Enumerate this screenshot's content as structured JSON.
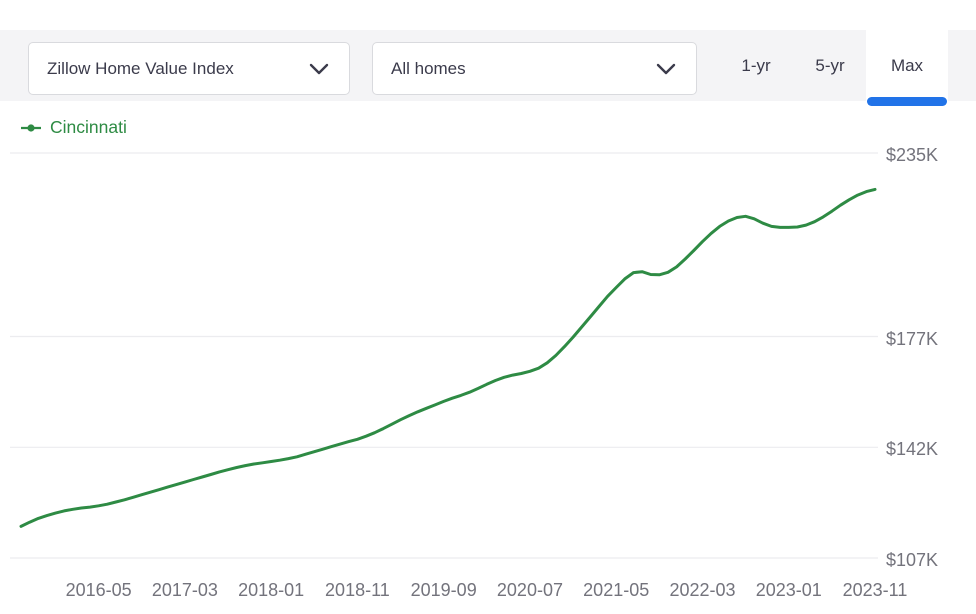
{
  "toolbar": {
    "metric_dropdown": {
      "value": "Zillow Home Value Index"
    },
    "segment_dropdown": {
      "value": "All homes"
    },
    "range_tabs": [
      {
        "label": "1-yr",
        "active": false
      },
      {
        "label": "5-yr",
        "active": false
      },
      {
        "label": "Max",
        "active": true
      }
    ]
  },
  "legend": {
    "label": "Cincinnati"
  },
  "colors": {
    "series_green": "#2e8b44",
    "active_tab_blue": "#2173e8",
    "toolbar_bg": "#f4f4f6",
    "dropdown_border": "#d9dade",
    "dropdown_text": "#3b3b4b",
    "axis_label": "#73737c",
    "gridline": "#ececef"
  },
  "chart_data": {
    "type": "line",
    "title": "",
    "xlabel": "",
    "ylabel": "",
    "grid": "horizontal",
    "legend_position": "top-left",
    "unit": "USD thousands",
    "ylim": [
      103,
      239
    ],
    "y_ticks": {
      "values": [
        235,
        177,
        142,
        107
      ],
      "labels": [
        "$235K",
        "$177K",
        "$142K",
        "$107K"
      ]
    },
    "x_tick_labels": [
      "2016-05",
      "2017-03",
      "2018-01",
      "2018-11",
      "2019-09",
      "2020-07",
      "2021-05",
      "2022-03",
      "2023-01",
      "2023-11"
    ],
    "x": [
      "2015-08",
      "2015-09",
      "2015-10",
      "2015-11",
      "2015-12",
      "2016-01",
      "2016-02",
      "2016-03",
      "2016-04",
      "2016-05",
      "2016-06",
      "2016-07",
      "2016-08",
      "2016-09",
      "2016-10",
      "2016-11",
      "2016-12",
      "2017-01",
      "2017-02",
      "2017-03",
      "2017-04",
      "2017-05",
      "2017-06",
      "2017-07",
      "2017-08",
      "2017-09",
      "2017-10",
      "2017-11",
      "2017-12",
      "2018-01",
      "2018-02",
      "2018-03",
      "2018-04",
      "2018-05",
      "2018-06",
      "2018-07",
      "2018-08",
      "2018-09",
      "2018-10",
      "2018-11",
      "2018-12",
      "2019-01",
      "2019-02",
      "2019-03",
      "2019-04",
      "2019-05",
      "2019-06",
      "2019-07",
      "2019-08",
      "2019-09",
      "2019-10",
      "2019-11",
      "2019-12",
      "2020-01",
      "2020-02",
      "2020-03",
      "2020-04",
      "2020-05",
      "2020-06",
      "2020-07",
      "2020-08",
      "2020-09",
      "2020-10",
      "2020-11",
      "2020-12",
      "2021-01",
      "2021-02",
      "2021-03",
      "2021-04",
      "2021-05",
      "2021-06",
      "2021-07",
      "2021-08",
      "2021-09",
      "2021-10",
      "2021-11",
      "2021-12",
      "2022-01",
      "2022-02",
      "2022-03",
      "2022-04",
      "2022-05",
      "2022-06",
      "2022-07",
      "2022-08",
      "2022-09",
      "2022-10",
      "2022-11",
      "2022-12",
      "2023-01",
      "2023-02",
      "2023-03",
      "2023-04",
      "2023-05",
      "2023-06",
      "2023-07",
      "2023-08",
      "2023-09",
      "2023-10",
      "2023-11"
    ],
    "series": [
      {
        "name": "Cincinnati",
        "color": "#2e8b44",
        "values": [
          117.0,
          118.3,
          119.5,
          120.4,
          121.2,
          121.9,
          122.4,
          122.8,
          123.1,
          123.5,
          124.0,
          124.7,
          125.4,
          126.2,
          127.0,
          127.8,
          128.6,
          129.4,
          130.2,
          131.0,
          131.8,
          132.6,
          133.4,
          134.2,
          134.9,
          135.6,
          136.2,
          136.7,
          137.1,
          137.5,
          137.9,
          138.4,
          139.0,
          139.8,
          140.6,
          141.4,
          142.2,
          143.0,
          143.8,
          144.5,
          145.5,
          146.6,
          147.9,
          149.3,
          150.7,
          152.0,
          153.2,
          154.3,
          155.4,
          156.5,
          157.5,
          158.4,
          159.4,
          160.6,
          161.9,
          163.1,
          164.1,
          164.8,
          165.3,
          166.0,
          167.0,
          168.7,
          171.0,
          173.8,
          176.8,
          180.0,
          183.2,
          186.5,
          189.7,
          192.5,
          195.2,
          197.2,
          197.5,
          196.6,
          196.5,
          197.3,
          199.0,
          201.5,
          204.2,
          207.0,
          209.6,
          211.8,
          213.5,
          214.6,
          215.0,
          214.2,
          212.8,
          211.8,
          211.5,
          211.5,
          211.6,
          212.2,
          213.3,
          214.8,
          216.6,
          218.5,
          220.2,
          221.7,
          222.8,
          223.5
        ]
      }
    ]
  }
}
